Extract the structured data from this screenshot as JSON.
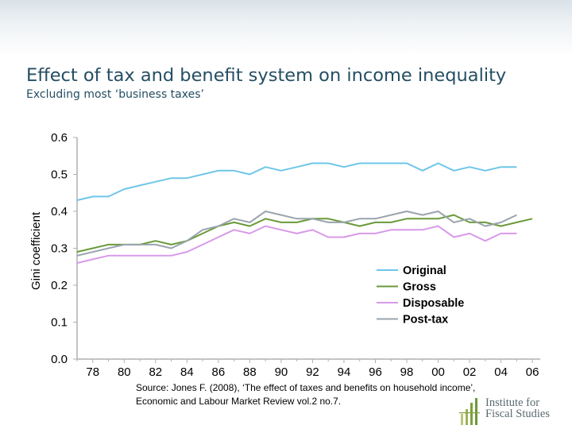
{
  "header": {
    "title": "Effect of tax and benefit system on income inequality",
    "subtitle": "Excluding most ‘business taxes’"
  },
  "footer": {
    "source_line1": "Source: Jones F. (2008), ‘The effect of taxes and benefits on household income’,",
    "source_line2": "Economic and Labour Market Review vol.2 no.7."
  },
  "logo": {
    "text_line1": "Institute for",
    "text_line2": "Fiscal Studies"
  },
  "colors": {
    "Original": "#6ec6e8",
    "Gross": "#6a9a3a",
    "Disposable": "#d89ae8",
    "Post-tax": "#9aa4ae",
    "axis": "#b0b0b0"
  },
  "chart_data": {
    "type": "line",
    "ylabel": "Gini coefficient",
    "xlabel": "",
    "ylim": [
      0.0,
      0.6
    ],
    "yticks": [
      "0.0",
      "0.1",
      "0.2",
      "0.3",
      "0.4",
      "0.5",
      "0.6"
    ],
    "xticks": [
      "78",
      "80",
      "82",
      "84",
      "86",
      "88",
      "90",
      "92",
      "94",
      "96",
      "98",
      "00",
      "02",
      "04",
      "06"
    ],
    "x": [
      1977,
      1978,
      1979,
      1980,
      1981,
      1982,
      1983,
      1984,
      1985,
      1986,
      1987,
      1988,
      1989,
      1990,
      1991,
      1992,
      1993,
      1994,
      1995,
      1996,
      1997,
      1998,
      1999,
      2000,
      2001,
      2002,
      2003,
      2004,
      2005,
      2006
    ],
    "legend": "inside, center-right",
    "grid": false,
    "series": [
      {
        "name": "Original",
        "values": [
          0.43,
          0.44,
          0.44,
          0.46,
          0.47,
          0.48,
          0.49,
          0.49,
          0.5,
          0.51,
          0.51,
          0.5,
          0.52,
          0.51,
          0.52,
          0.53,
          0.53,
          0.52,
          0.53,
          0.53,
          0.53,
          0.53,
          0.51,
          0.53,
          0.51,
          0.52,
          0.51,
          0.52,
          0.52,
          null
        ]
      },
      {
        "name": "Gross",
        "values": [
          0.29,
          0.3,
          0.31,
          0.31,
          0.31,
          0.32,
          0.31,
          0.32,
          0.34,
          0.36,
          0.37,
          0.36,
          0.38,
          0.37,
          0.37,
          0.38,
          0.38,
          0.37,
          0.36,
          0.37,
          0.37,
          0.38,
          0.38,
          0.38,
          0.39,
          0.37,
          0.37,
          0.36,
          0.37,
          0.38
        ]
      },
      {
        "name": "Disposable",
        "values": [
          0.26,
          0.27,
          0.28,
          0.28,
          0.28,
          0.28,
          0.28,
          0.29,
          0.31,
          0.33,
          0.35,
          0.34,
          0.36,
          0.35,
          0.34,
          0.35,
          0.33,
          0.33,
          0.34,
          0.34,
          0.35,
          0.35,
          0.35,
          0.36,
          0.33,
          0.34,
          0.32,
          0.34,
          0.34,
          null
        ]
      },
      {
        "name": "Post-tax",
        "values": [
          0.28,
          0.29,
          0.3,
          0.31,
          0.31,
          0.31,
          0.3,
          0.32,
          0.35,
          0.36,
          0.38,
          0.37,
          0.4,
          0.39,
          0.38,
          0.38,
          0.37,
          0.37,
          0.38,
          0.38,
          0.39,
          0.4,
          0.39,
          0.4,
          0.37,
          0.38,
          0.36,
          0.37,
          0.39,
          null
        ]
      }
    ]
  }
}
